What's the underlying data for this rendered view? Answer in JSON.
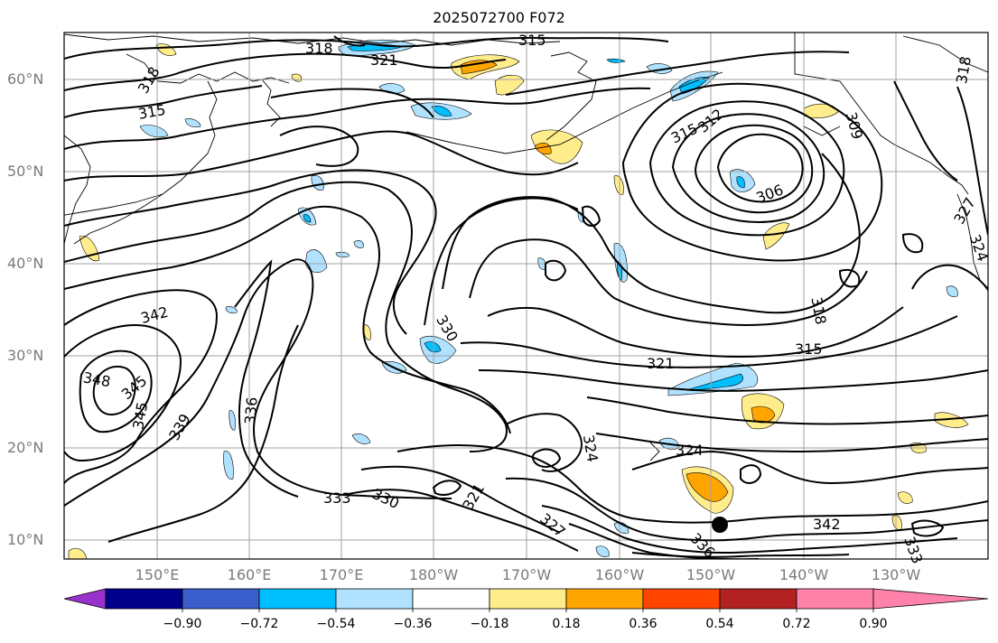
{
  "title": "2025072700 F072",
  "lat_labels": [
    "60°N",
    "50°N",
    "40°N",
    "30°N",
    "20°N",
    "10°N"
  ],
  "lon_labels": [
    "150°E",
    "160°E",
    "170°E",
    "180°W",
    "170°W",
    "160°W",
    "150°W",
    "140°W",
    "130°W"
  ],
  "colorbar": {
    "tick_labels": [
      "−0.90",
      "−0.72",
      "−0.54",
      "−0.36",
      "−0.18",
      "0.18",
      "0.36",
      "0.54",
      "0.72",
      "0.90"
    ],
    "colors": [
      "#9932cc",
      "#00008b",
      "#3a5fcd",
      "#00bfff",
      "#b0e2ff",
      "#ffffff",
      "#ffec8b",
      "#ffa500",
      "#ff4500",
      "#b22222",
      "#ff82ab"
    ]
  },
  "contour_labels": [
    "318",
    "321",
    "315",
    "318",
    "315",
    "315",
    "312",
    "309",
    "306",
    "318",
    "342",
    "330",
    "321",
    "318",
    "315",
    "348",
    "345",
    "345",
    "339",
    "336",
    "333",
    "330",
    "321",
    "324",
    "324",
    "327",
    "342",
    "336",
    "333",
    "327",
    "324"
  ],
  "colors": {
    "contour": "#000000",
    "grid": "#a0a0a0",
    "coast": "#000000"
  }
}
